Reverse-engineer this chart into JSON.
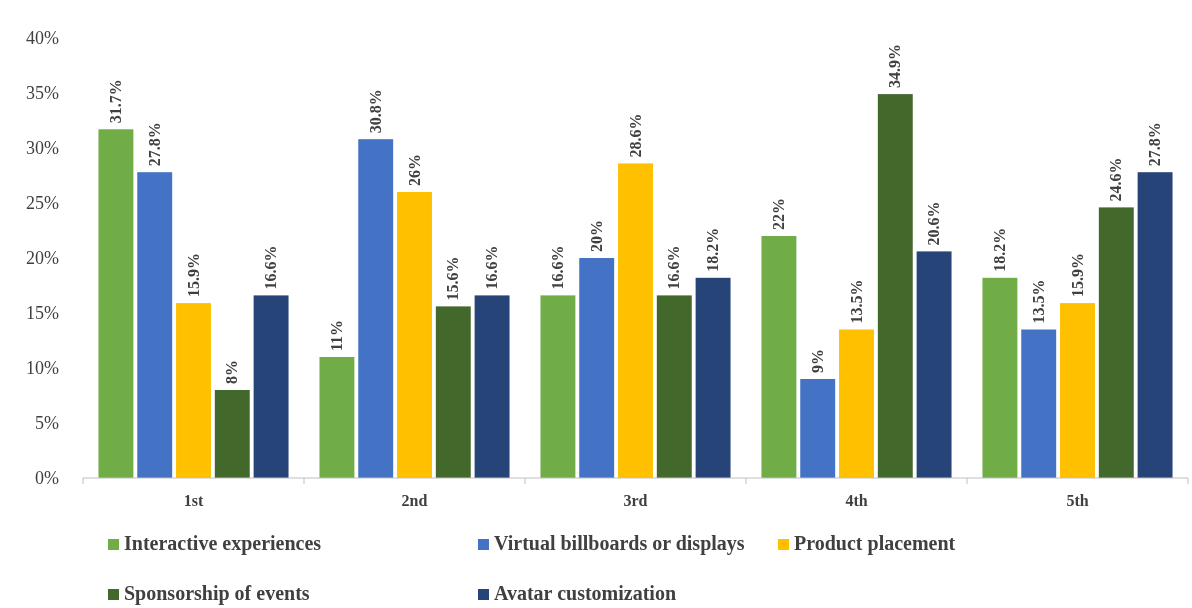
{
  "chart_data": {
    "type": "bar",
    "categories": [
      "1st",
      "2nd",
      "3rd",
      "4th",
      "5th"
    ],
    "ylim": [
      0,
      40
    ],
    "yticks": [
      {
        "value": 0,
        "label": "0%"
      },
      {
        "value": 5,
        "label": "5%"
      },
      {
        "value": 10,
        "label": "10%"
      },
      {
        "value": 15,
        "label": "15%"
      },
      {
        "value": 20,
        "label": "20%"
      },
      {
        "value": 25,
        "label": "25%"
      },
      {
        "value": 30,
        "label": "30%"
      },
      {
        "value": 35,
        "label": "35%"
      },
      {
        "value": 40,
        "label": "40%"
      }
    ],
    "grid": false,
    "legend": "bottom",
    "series": [
      {
        "name": "Interactive experiences",
        "color": "#70ad47",
        "values": [
          31.7,
          11,
          16.6,
          22,
          18.2
        ],
        "value_labels": [
          "31.7%",
          "11%",
          "16.6%",
          "22%",
          "18.2%"
        ]
      },
      {
        "name": "Virtual billboards or displays",
        "color": "#4472c4",
        "values": [
          27.8,
          30.8,
          20,
          9,
          13.5
        ],
        "value_labels": [
          "27.8%",
          "30.8%",
          "20%",
          "9%",
          "13.5%"
        ]
      },
      {
        "name": "Product placement",
        "color": "#ffc000",
        "values": [
          15.9,
          26,
          28.6,
          13.5,
          15.9
        ],
        "value_labels": [
          "15.9%",
          "26%",
          "28.6%",
          "13.5%",
          "15.9%"
        ]
      },
      {
        "name": "Sponsorship of events",
        "color": "#43682b",
        "values": [
          8,
          15.6,
          16.6,
          34.9,
          24.6
        ],
        "value_labels": [
          "8%",
          "15.6%",
          "16.6%",
          "34.9%",
          "24.6%"
        ]
      },
      {
        "name": "Avatar customization",
        "color": "#264478",
        "values": [
          16.6,
          16.6,
          18.2,
          20.6,
          27.8
        ],
        "value_labels": [
          "16.6%",
          "16.6%",
          "18.2%",
          "20.6%",
          "27.8%"
        ]
      }
    ]
  }
}
